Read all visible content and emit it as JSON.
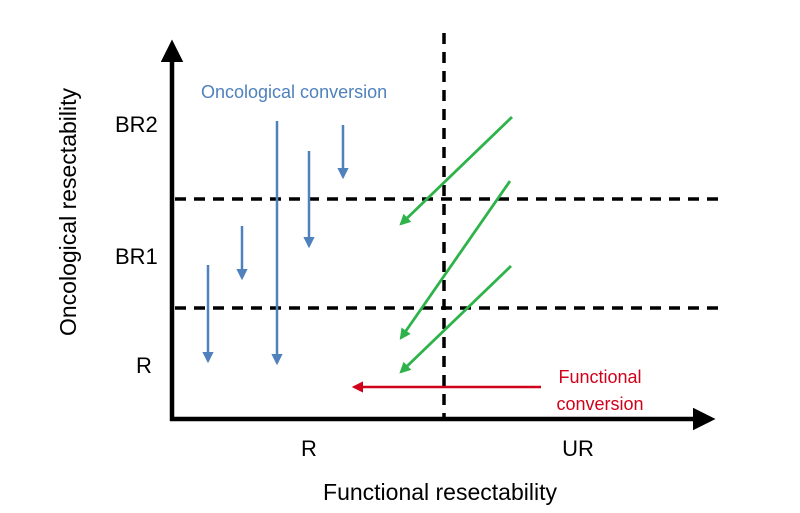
{
  "x_axis": {
    "title": "Functional resectability",
    "ticks": [
      "R",
      "UR"
    ]
  },
  "y_axis": {
    "title": "Oncological resectability",
    "ticks": [
      "BR2",
      "BR1",
      "R"
    ]
  },
  "annotations": {
    "oncological": "Oncological conversion",
    "functional_line1": "Functional",
    "functional_line2": "conversion"
  },
  "colors": {
    "axis": "#000000",
    "oncological": "#4f81bd",
    "functional": "#d0021b",
    "green": "#2eb34a"
  },
  "arrows": {
    "oncological_count": 5,
    "green_count": 3,
    "functional_count": 1
  }
}
